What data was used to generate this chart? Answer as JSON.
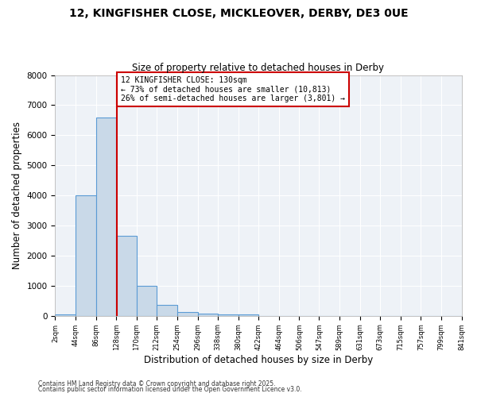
{
  "title1": "12, KINGFISHER CLOSE, MICKLEOVER, DERBY, DE3 0UE",
  "title2": "Size of property relative to detached houses in Derby",
  "xlabel": "Distribution of detached houses by size in Derby",
  "ylabel": "Number of detached properties",
  "bin_edges": [
    2,
    44,
    86,
    128,
    170,
    212,
    254,
    296,
    338,
    380,
    422,
    464,
    506,
    547,
    589,
    631,
    673,
    715,
    757,
    799,
    841
  ],
  "bar_heights": [
    50,
    4000,
    6600,
    2650,
    1000,
    350,
    130,
    80,
    50,
    50,
    0,
    0,
    0,
    0,
    0,
    0,
    0,
    0,
    0,
    0
  ],
  "bar_color": "#c9d9e8",
  "bar_edge_color": "#5b9bd5",
  "property_size": 130,
  "vline_color": "#cc0000",
  "annotation_title": "12 KINGFISHER CLOSE: 130sqm",
  "annotation_line1": "← 73% of detached houses are smaller (10,813)",
  "annotation_line2": "26% of semi-detached houses are larger (3,801) →",
  "annotation_box_color": "#cc0000",
  "ylim": [
    0,
    8000
  ],
  "background_color": "#eef2f7",
  "footer1": "Contains HM Land Registry data © Crown copyright and database right 2025.",
  "footer2": "Contains public sector information licensed under the Open Government Licence v3.0."
}
